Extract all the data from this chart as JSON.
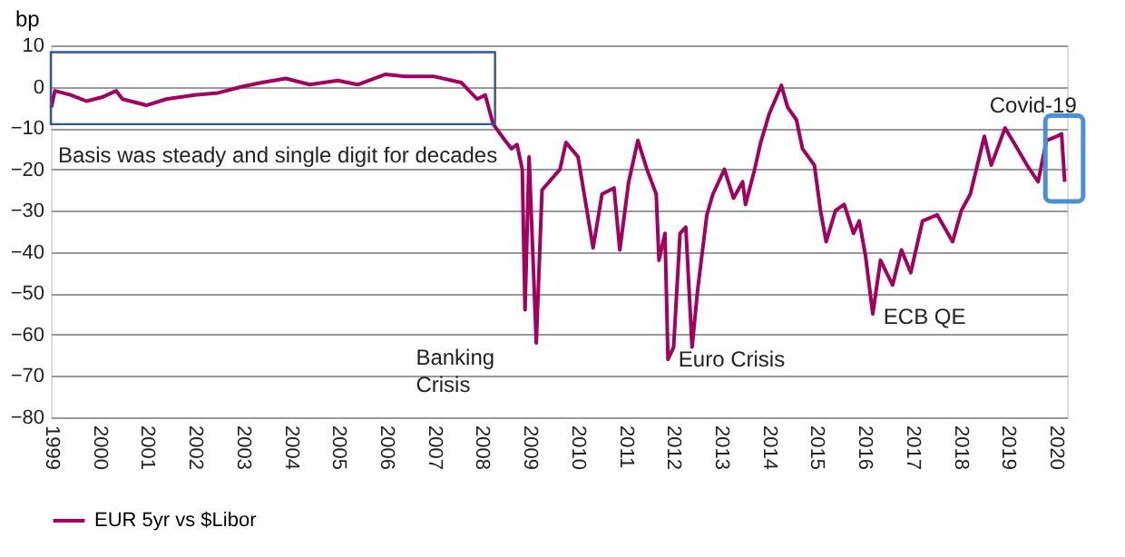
{
  "chart_data": {
    "type": "line",
    "ylabel": "bp",
    "legend": "bottom",
    "grid": "y",
    "line_style": "solid",
    "marker": "none",
    "xlim": [
      "1999-01-01",
      "2020-04-01"
    ],
    "xticks": [
      "1999",
      "2000",
      "2001",
      "2002",
      "2003",
      "2004",
      "2005",
      "2006",
      "2007",
      "2008",
      "2009",
      "2010",
      "2011",
      "2012",
      "2013",
      "2014",
      "2015",
      "2016",
      "2017",
      "2018",
      "2019",
      "2020"
    ],
    "ylim": [
      -80,
      10
    ],
    "yticks": [
      -80,
      -70,
      -60,
      -50,
      -40,
      -30,
      -20,
      -10,
      0,
      10
    ],
    "x": [
      "1999-01-05",
      "1999-02-01",
      "1999-06-01",
      "1999-10-01",
      "2000-02-01",
      "2000-05-15",
      "2000-07-01",
      "2001-01-01",
      "2001-06-01",
      "2002-01-01",
      "2002-07-01",
      "2003-01-01",
      "2003-06-01",
      "2003-12-01",
      "2004-06-01",
      "2005-01-01",
      "2005-06-01",
      "2006-01-01",
      "2006-06-01",
      "2007-01-01",
      "2007-08-01",
      "2007-12-01",
      "2008-02-01",
      "2008-04-01",
      "2008-07-01",
      "2008-08-20",
      "2008-10-01",
      "2008-11-10",
      "2008-12-01",
      "2009-01-01",
      "2009-02-25",
      "2009-04-10",
      "2009-08-25",
      "2009-10-10",
      "2010-01-10",
      "2010-05-05",
      "2010-07-12",
      "2010-10-12",
      "2010-11-25",
      "2011-02-01",
      "2011-04-12",
      "2011-06-20",
      "2011-08-30",
      "2011-09-20",
      "2011-11-05",
      "2011-11-28",
      "2012-01-10",
      "2012-02-28",
      "2012-04-12",
      "2012-05-30",
      "2012-07-12",
      "2012-09-20",
      "2012-11-05",
      "2013-02-01",
      "2013-04-12",
      "2013-06-20",
      "2013-07-12",
      "2013-09-20",
      "2013-11-05",
      "2014-01-10",
      "2014-04-12",
      "2014-05-30",
      "2014-08-05",
      "2014-09-20",
      "2014-12-20",
      "2015-02-05",
      "2015-03-20",
      "2015-05-30",
      "2015-08-05",
      "2015-10-15",
      "2015-11-28",
      "2016-01-15",
      "2016-03-10",
      "2016-05-08",
      "2016-08-08",
      "2016-10-15",
      "2016-12-25",
      "2017-03-25",
      "2017-07-15",
      "2017-11-10",
      "2018-01-15",
      "2018-03-25",
      "2018-05-10",
      "2018-07-10",
      "2018-09-01",
      "2018-12-15",
      "2019-03-01",
      "2019-06-01",
      "2019-08-25",
      "2019-10-28",
      "2020-01-18",
      "2020-02-20",
      "2020-03-15"
    ],
    "series": [
      {
        "name": "EUR 5yr vs $Libor",
        "color": "#a3005f",
        "values": [
          -5,
          -1,
          -2,
          -3.5,
          -2.5,
          -1,
          -3,
          -4.5,
          -3,
          -2,
          -1.5,
          0,
          1,
          2,
          0.5,
          1.5,
          0.5,
          3,
          2.5,
          2.5,
          1,
          -3,
          -2,
          -9,
          -13,
          -15,
          -14,
          -20,
          -54,
          -17,
          -62,
          -25,
          -20,
          -13.5,
          -17,
          -39,
          -26,
          -24.5,
          -39.5,
          -23,
          -13,
          -20,
          -26,
          -42,
          -35.5,
          -66,
          -63,
          -35.5,
          -34,
          -63,
          -49,
          -31,
          -26,
          -20,
          -27,
          -23,
          -28.5,
          -20,
          -13.5,
          -6.5,
          0.3,
          -5,
          -8,
          -15,
          -19,
          -30,
          -37.5,
          -30,
          -28.5,
          -35.5,
          -32.5,
          -41,
          -55,
          -42,
          -48,
          -39.5,
          -45,
          -32.5,
          -31,
          -37.5,
          -30,
          -26,
          -20,
          -12,
          -19,
          -10,
          -14,
          -19,
          -23,
          -13,
          -12,
          -11.4,
          -23
        ]
      }
    ],
    "annotations": [
      "Basis was steady and single digit for decades",
      "Banking Crisis",
      "Euro Crisis",
      "ECB QE",
      "Covid-19"
    ]
  }
}
